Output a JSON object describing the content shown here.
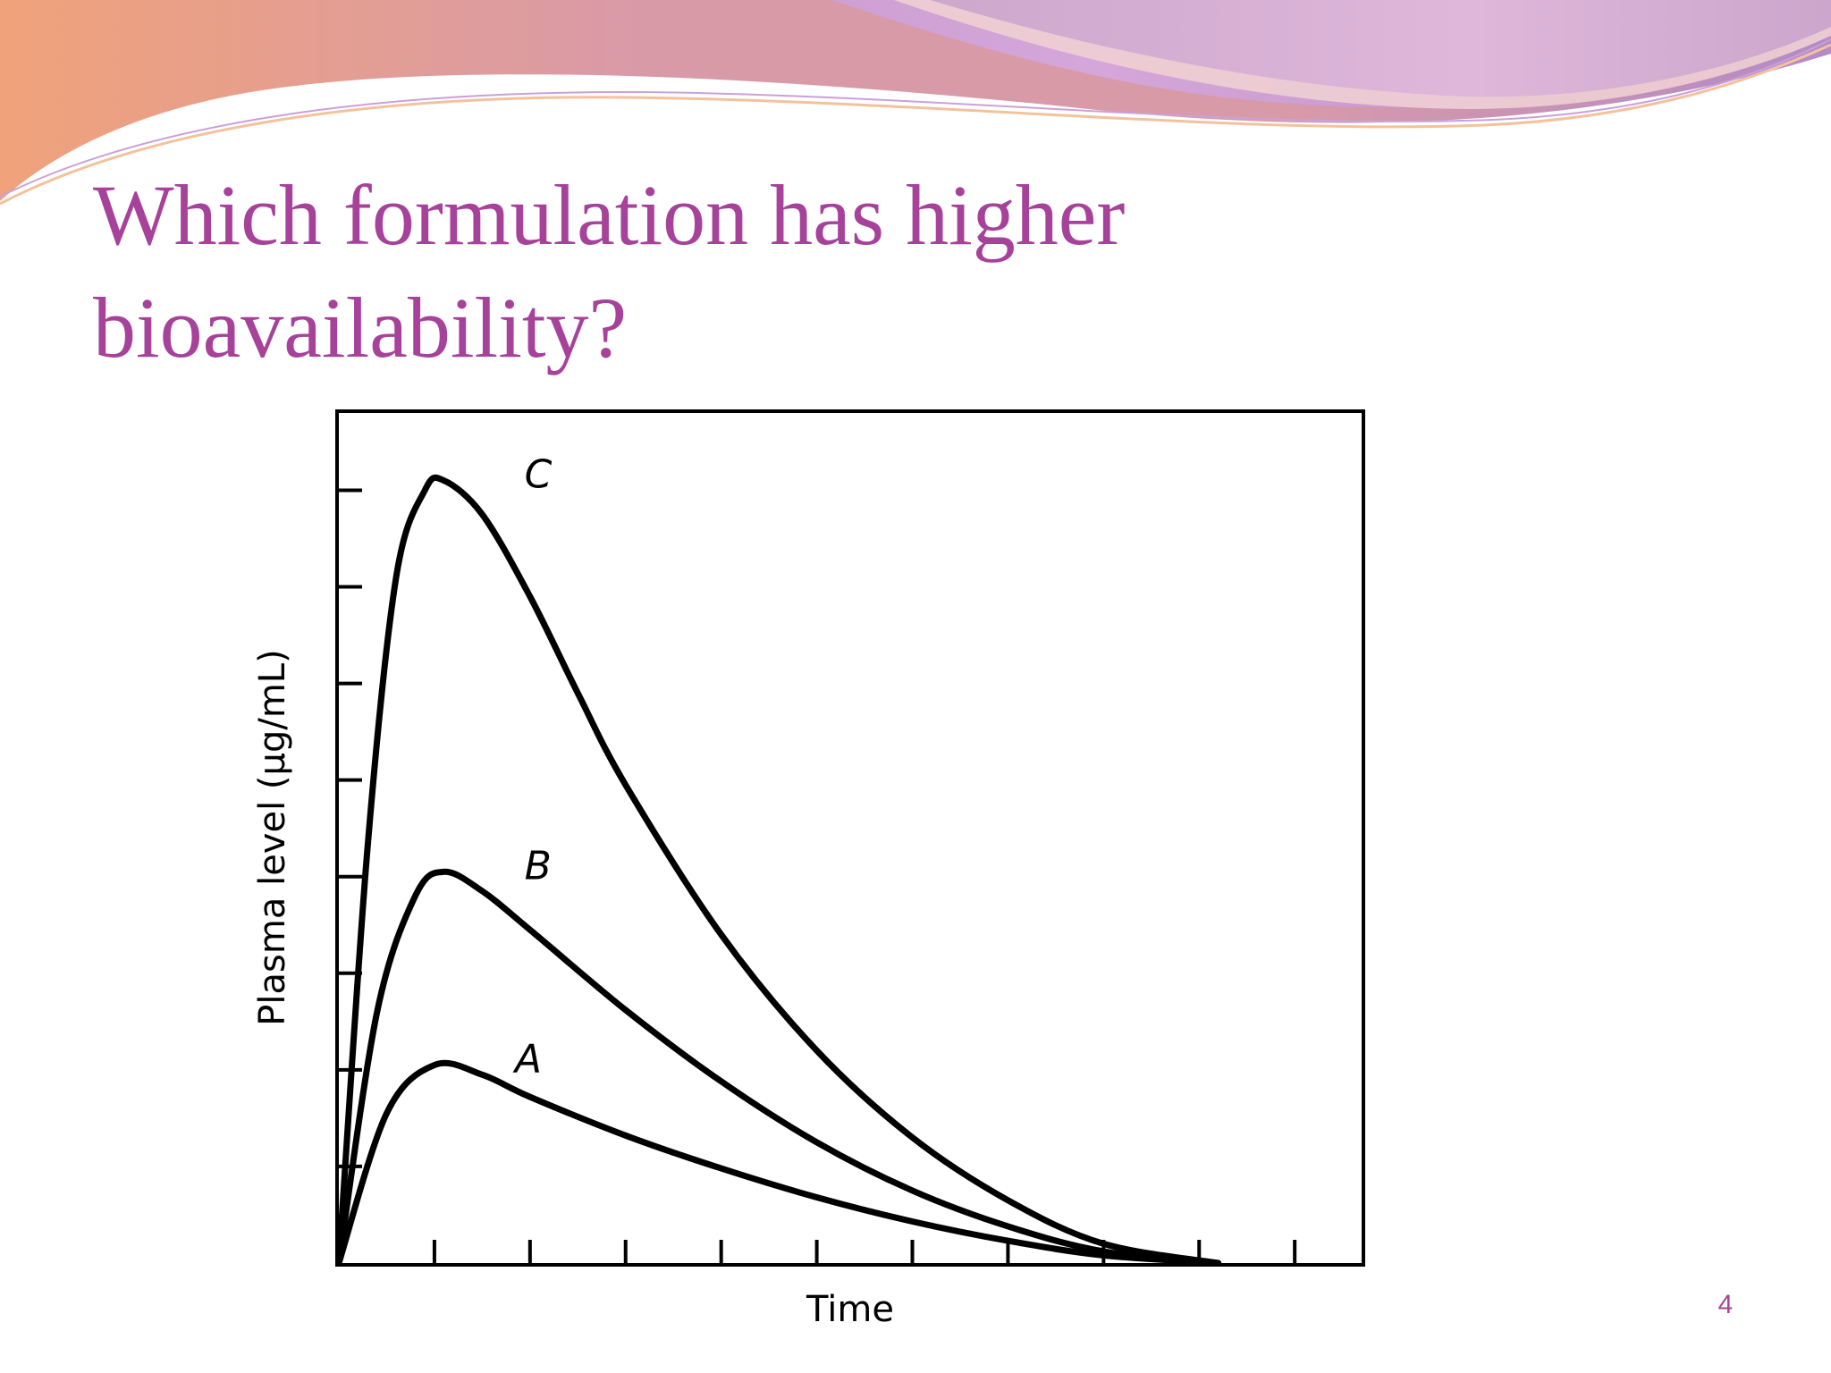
{
  "slide": {
    "title_line1": "Which formulation has higher",
    "title_line2": "bioavailability?",
    "page_number": "4"
  },
  "colors": {
    "title": "#a6429a",
    "curve": "#000000",
    "banner_purple": "#b48ac7",
    "banner_pink": "#d99aa8",
    "banner_orange": "#f0a27a",
    "banner_lavender": "#d4a8e2"
  },
  "chart_data": {
    "type": "line",
    "xlabel": "Time",
    "ylabel": "Plasma level (μg/mL)",
    "xlim": [
      0,
      10.7
    ],
    "ylim": [
      0,
      8.8
    ],
    "x_tick_count": 10,
    "y_tick_count": 8,
    "grid": false,
    "series": [
      {
        "name": "A",
        "x": [
          0,
          0.5,
          1.0,
          1.5,
          2,
          3,
          4,
          5,
          6,
          7,
          8,
          9.2
        ],
        "y": [
          0,
          1.55,
          2.05,
          1.95,
          1.72,
          1.32,
          0.98,
          0.68,
          0.43,
          0.23,
          0.08,
          0
        ]
      },
      {
        "name": "B",
        "x": [
          0,
          0.4,
          0.8,
          1.1,
          1.5,
          2,
          3,
          4,
          5,
          6,
          7,
          8,
          9.2
        ],
        "y": [
          0,
          2.6,
          3.8,
          4.05,
          3.85,
          3.45,
          2.62,
          1.88,
          1.25,
          0.75,
          0.38,
          0.12,
          0
        ]
      },
      {
        "name": "C",
        "x": [
          0,
          0.3,
          0.6,
          0.9,
          1.1,
          1.5,
          2,
          2.5,
          3,
          4,
          5,
          6,
          7,
          8,
          9.2
        ],
        "y": [
          0,
          4.3,
          7.1,
          8.0,
          8.1,
          7.75,
          6.9,
          5.9,
          4.95,
          3.4,
          2.2,
          1.3,
          0.65,
          0.2,
          0
        ]
      }
    ]
  }
}
